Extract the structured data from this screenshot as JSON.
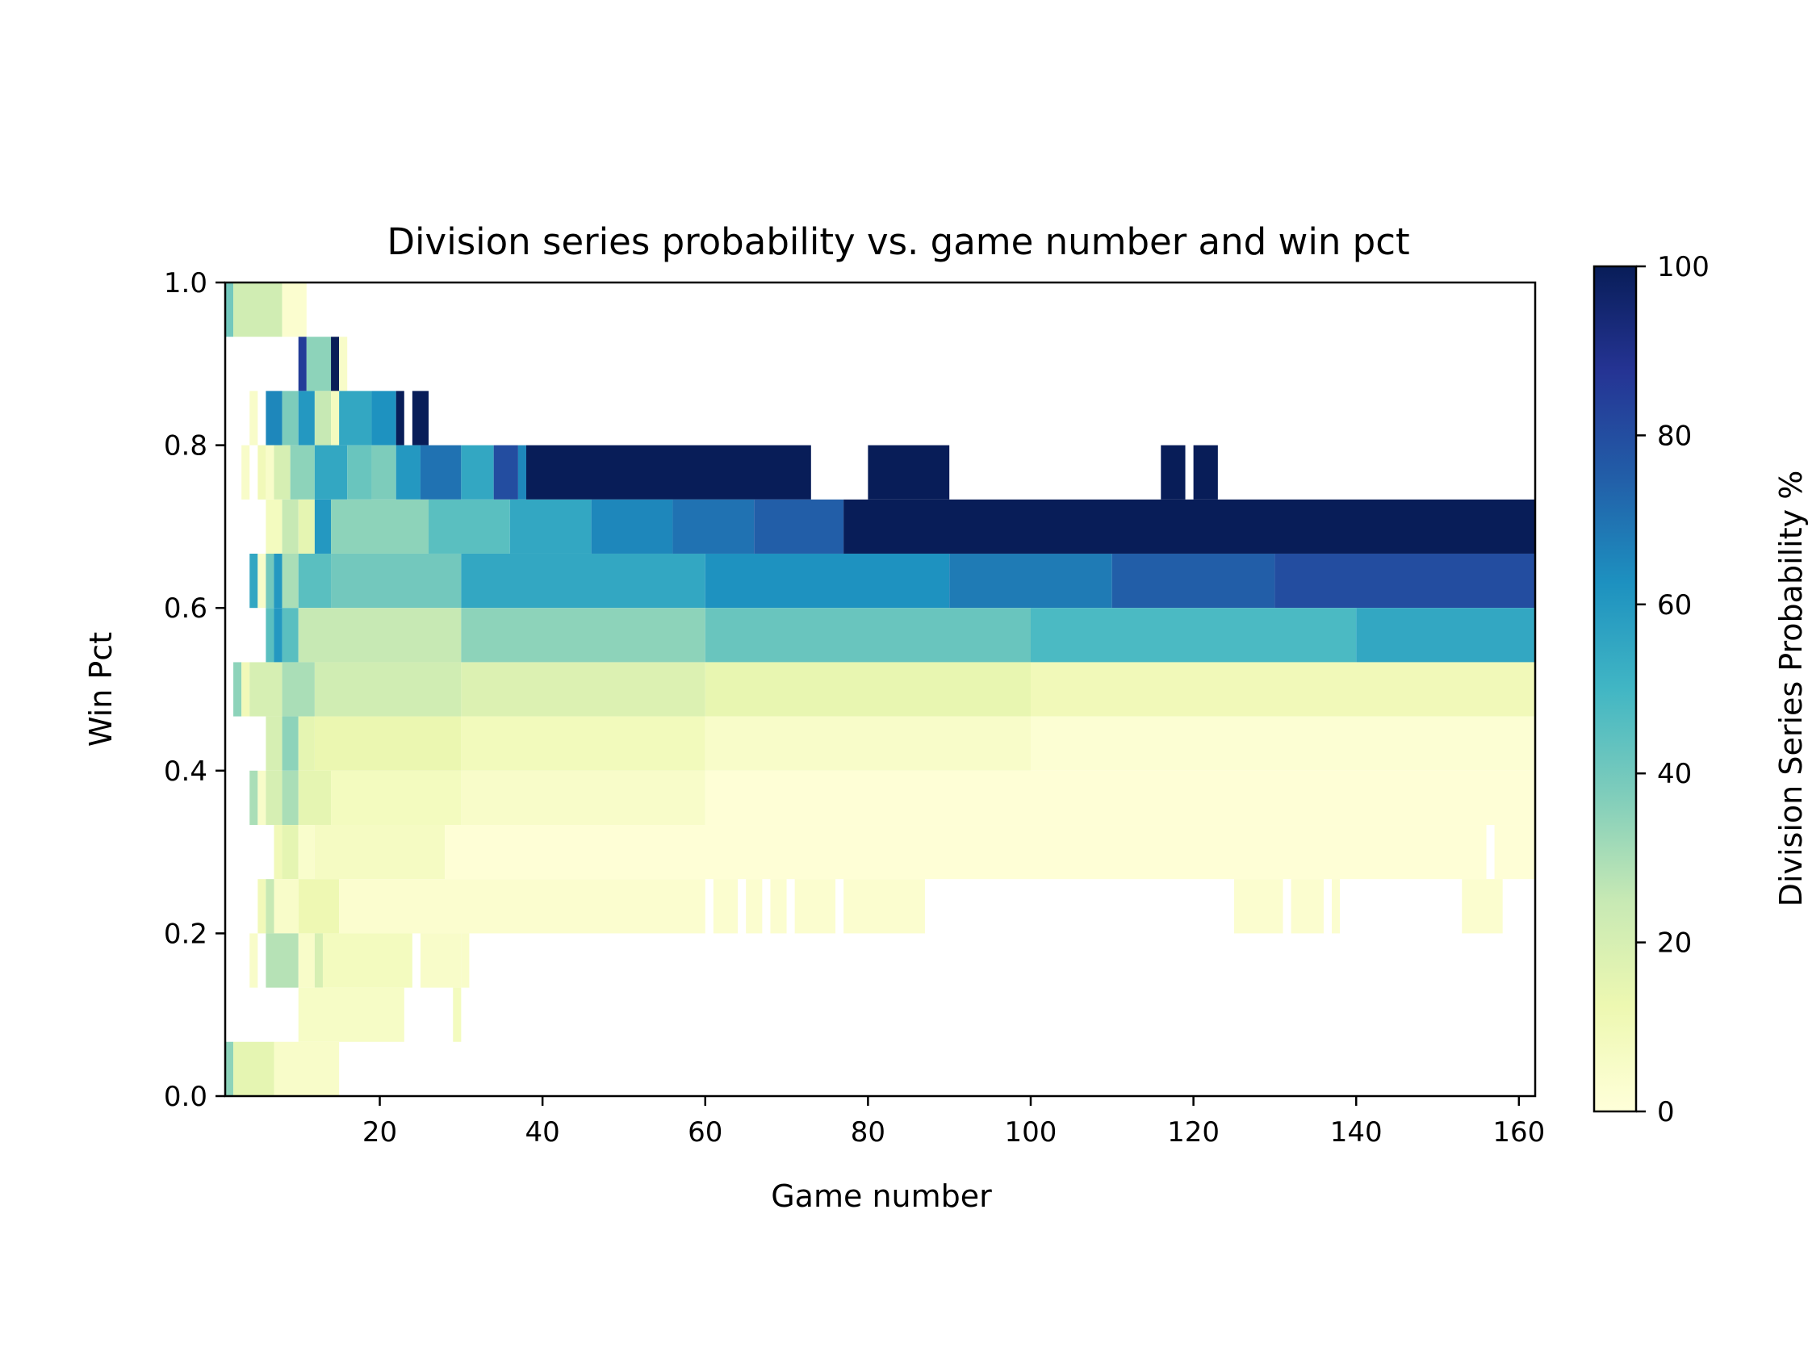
{
  "chart_data": {
    "type": "heatmap",
    "title": "Division series probability vs. game number and win pct",
    "xlabel": "Game number",
    "ylabel": "Win Pct",
    "colorbar_label": "Division Series Probability %",
    "xlim": [
      1,
      162
    ],
    "ylim": [
      0.0,
      1.0
    ],
    "x_ticks": [
      20,
      40,
      60,
      80,
      100,
      120,
      140,
      160
    ],
    "y_ticks": [
      "0.0",
      "0.2",
      "0.4",
      "0.6",
      "0.8",
      "1.0"
    ],
    "colorbar_ticks": [
      0,
      20,
      40,
      60,
      80,
      100
    ],
    "colorbar_range": [
      0,
      100
    ],
    "colormap": "YlGnBu",
    "colormap_stops": [
      "#ffffd9",
      "#edf8b1",
      "#c7e9b4",
      "#7fcdbb",
      "#41b6c4",
      "#1d91c0",
      "#225ea8",
      "#253494",
      "#081d58"
    ],
    "y_bin_width": 0.0667,
    "rows": [
      {
        "y": [
          0.9333,
          1.0
        ],
        "segments": [
          [
            1,
            2,
            40
          ],
          [
            2,
            8,
            22
          ],
          [
            8,
            11,
            3
          ]
        ]
      },
      {
        "y": [
          0.8667,
          0.9333
        ],
        "segments": [
          [
            10,
            11,
            85
          ],
          [
            11,
            14,
            35
          ],
          [
            14,
            15,
            100
          ],
          [
            15,
            16,
            5
          ]
        ]
      },
      {
        "y": [
          0.8,
          0.8667
        ],
        "segments": [
          [
            4,
            5,
            5
          ],
          [
            6,
            8,
            65
          ],
          [
            8,
            10,
            38
          ],
          [
            10,
            12,
            60
          ],
          [
            12,
            14,
            25
          ],
          [
            14,
            15,
            8
          ],
          [
            15,
            19,
            55
          ],
          [
            19,
            22,
            62
          ],
          [
            22,
            23,
            100
          ],
          [
            24,
            26,
            100
          ]
        ]
      },
      {
        "y": [
          0.7333,
          0.8
        ],
        "segments": [
          [
            3,
            4,
            5
          ],
          [
            5,
            6,
            10
          ],
          [
            6,
            7,
            5
          ],
          [
            7,
            9,
            20
          ],
          [
            9,
            12,
            35
          ],
          [
            12,
            16,
            55
          ],
          [
            16,
            19,
            42
          ],
          [
            19,
            22,
            38
          ],
          [
            22,
            25,
            60
          ],
          [
            25,
            30,
            70
          ],
          [
            30,
            34,
            55
          ],
          [
            34,
            37,
            80
          ],
          [
            37,
            38,
            65
          ],
          [
            38,
            73,
            100
          ],
          [
            80,
            90,
            100
          ],
          [
            116,
            119,
            100
          ],
          [
            120,
            123,
            100
          ]
        ]
      },
      {
        "y": [
          0.6667,
          0.7333
        ],
        "segments": [
          [
            6,
            8,
            8
          ],
          [
            8,
            10,
            25
          ],
          [
            10,
            12,
            15
          ],
          [
            12,
            14,
            60
          ],
          [
            14,
            26,
            35
          ],
          [
            26,
            36,
            45
          ],
          [
            36,
            46,
            55
          ],
          [
            46,
            56,
            65
          ],
          [
            56,
            66,
            70
          ],
          [
            66,
            77,
            75
          ],
          [
            77,
            162,
            100
          ]
        ]
      },
      {
        "y": [
          0.6,
          0.6667
        ],
        "segments": [
          [
            4,
            5,
            55
          ],
          [
            5,
            6,
            5
          ],
          [
            6,
            7,
            40
          ],
          [
            7,
            8,
            60
          ],
          [
            8,
            10,
            30
          ],
          [
            10,
            14,
            45
          ],
          [
            14,
            30,
            40
          ],
          [
            30,
            60,
            55
          ],
          [
            60,
            90,
            62
          ],
          [
            90,
            110,
            68
          ],
          [
            110,
            130,
            75
          ],
          [
            130,
            162,
            80
          ]
        ]
      },
      {
        "y": [
          0.5333,
          0.6
        ],
        "segments": [
          [
            6,
            7,
            45
          ],
          [
            7,
            8,
            60
          ],
          [
            8,
            10,
            45
          ],
          [
            10,
            30,
            25
          ],
          [
            30,
            60,
            35
          ],
          [
            60,
            100,
            42
          ],
          [
            100,
            140,
            48
          ],
          [
            140,
            162,
            55
          ]
        ]
      },
      {
        "y": [
          0.4667,
          0.5333
        ],
        "segments": [
          [
            2,
            3,
            35
          ],
          [
            3,
            4,
            10
          ],
          [
            4,
            8,
            20
          ],
          [
            8,
            12,
            30
          ],
          [
            12,
            30,
            22
          ],
          [
            30,
            60,
            18
          ],
          [
            60,
            100,
            14
          ],
          [
            100,
            162,
            10
          ]
        ]
      },
      {
        "y": [
          0.4,
          0.4667
        ],
        "segments": [
          [
            6,
            8,
            20
          ],
          [
            8,
            10,
            35
          ],
          [
            10,
            12,
            15
          ],
          [
            12,
            30,
            13
          ],
          [
            30,
            60,
            9
          ],
          [
            60,
            100,
            5
          ],
          [
            100,
            162,
            2
          ]
        ]
      },
      {
        "y": [
          0.3333,
          0.4
        ],
        "segments": [
          [
            4,
            5,
            30
          ],
          [
            5,
            6,
            5
          ],
          [
            6,
            8,
            20
          ],
          [
            8,
            10,
            30
          ],
          [
            10,
            14,
            15
          ],
          [
            14,
            30,
            8
          ],
          [
            30,
            60,
            5
          ],
          [
            60,
            162,
            1
          ]
        ]
      },
      {
        "y": [
          0.2667,
          0.3333
        ],
        "segments": [
          [
            7,
            8,
            10
          ],
          [
            8,
            10,
            15
          ],
          [
            10,
            12,
            4
          ],
          [
            12,
            28,
            7
          ],
          [
            28,
            156,
            1
          ],
          [
            157,
            162,
            1
          ]
        ]
      },
      {
        "y": [
          0.2,
          0.2667
        ],
        "segments": [
          [
            5,
            6,
            10
          ],
          [
            6,
            7,
            25
          ],
          [
            7,
            10,
            5
          ],
          [
            10,
            15,
            12
          ],
          [
            15,
            60,
            3
          ],
          [
            61,
            64,
            3
          ],
          [
            65,
            67,
            3
          ],
          [
            68,
            70,
            3
          ],
          [
            71,
            76,
            3
          ],
          [
            77,
            87,
            3
          ],
          [
            125,
            131,
            3
          ],
          [
            132,
            136,
            3
          ],
          [
            137,
            138,
            3
          ],
          [
            153,
            158,
            3
          ]
        ]
      },
      {
        "y": [
          0.1333,
          0.2
        ],
        "segments": [
          [
            4,
            5,
            5
          ],
          [
            6,
            10,
            28
          ],
          [
            10,
            12,
            5
          ],
          [
            12,
            13,
            20
          ],
          [
            13,
            24,
            8
          ],
          [
            25,
            30,
            5
          ],
          [
            30,
            31,
            5
          ]
        ]
      },
      {
        "y": [
          0.0667,
          0.1333
        ],
        "segments": [
          [
            10,
            23,
            6
          ],
          [
            29,
            30,
            8
          ]
        ]
      },
      {
        "y": [
          0.0,
          0.0667
        ],
        "segments": [
          [
            1,
            2,
            35
          ],
          [
            2,
            7,
            15
          ],
          [
            7,
            15,
            5
          ]
        ]
      }
    ]
  }
}
